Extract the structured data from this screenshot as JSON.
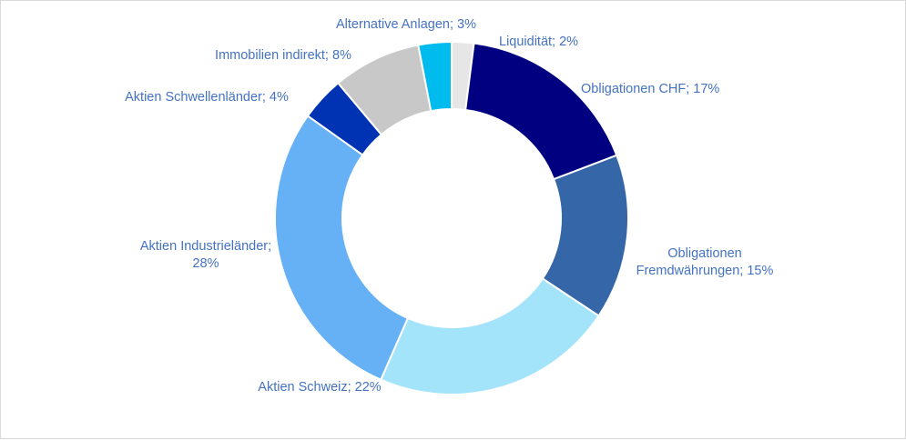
{
  "chart_data": {
    "type": "pie",
    "donut": true,
    "title": "",
    "legend": "none",
    "slices": [
      {
        "label": "Liquidität",
        "value": 2,
        "text": "Liquidität; 2%",
        "color": "#e6e6e6"
      },
      {
        "label": "Obligationen CHF",
        "value": 17,
        "text": "Obligationen CHF; 17%",
        "color": "#000080"
      },
      {
        "label": "Obligationen Fremdwährungen",
        "value": 15,
        "text": "Obligationen Fremdwährungen; 15%",
        "color": "#3566a8"
      },
      {
        "label": "Aktien Schweiz",
        "value": 22,
        "text": "Aktien Schweiz; 22%",
        "color": "#a4e4fb"
      },
      {
        "label": "Aktien Industrieländer",
        "value": 28,
        "text": "Aktien Industrieländer; 28%",
        "color": "#66b0f5"
      },
      {
        "label": "Aktien Schwellenländer",
        "value": 4,
        "text": "Aktien Schwellenländer; 4%",
        "color": "#0033b3"
      },
      {
        "label": "Immobilien indirekt",
        "value": 8,
        "text": "Immobilien indirekt; 8%",
        "color": "#c8c8c8"
      },
      {
        "label": "Alternative Anlagen",
        "value": 3,
        "text": "Alternative Anlagen; 3%",
        "color": "#00bbee"
      }
    ]
  }
}
